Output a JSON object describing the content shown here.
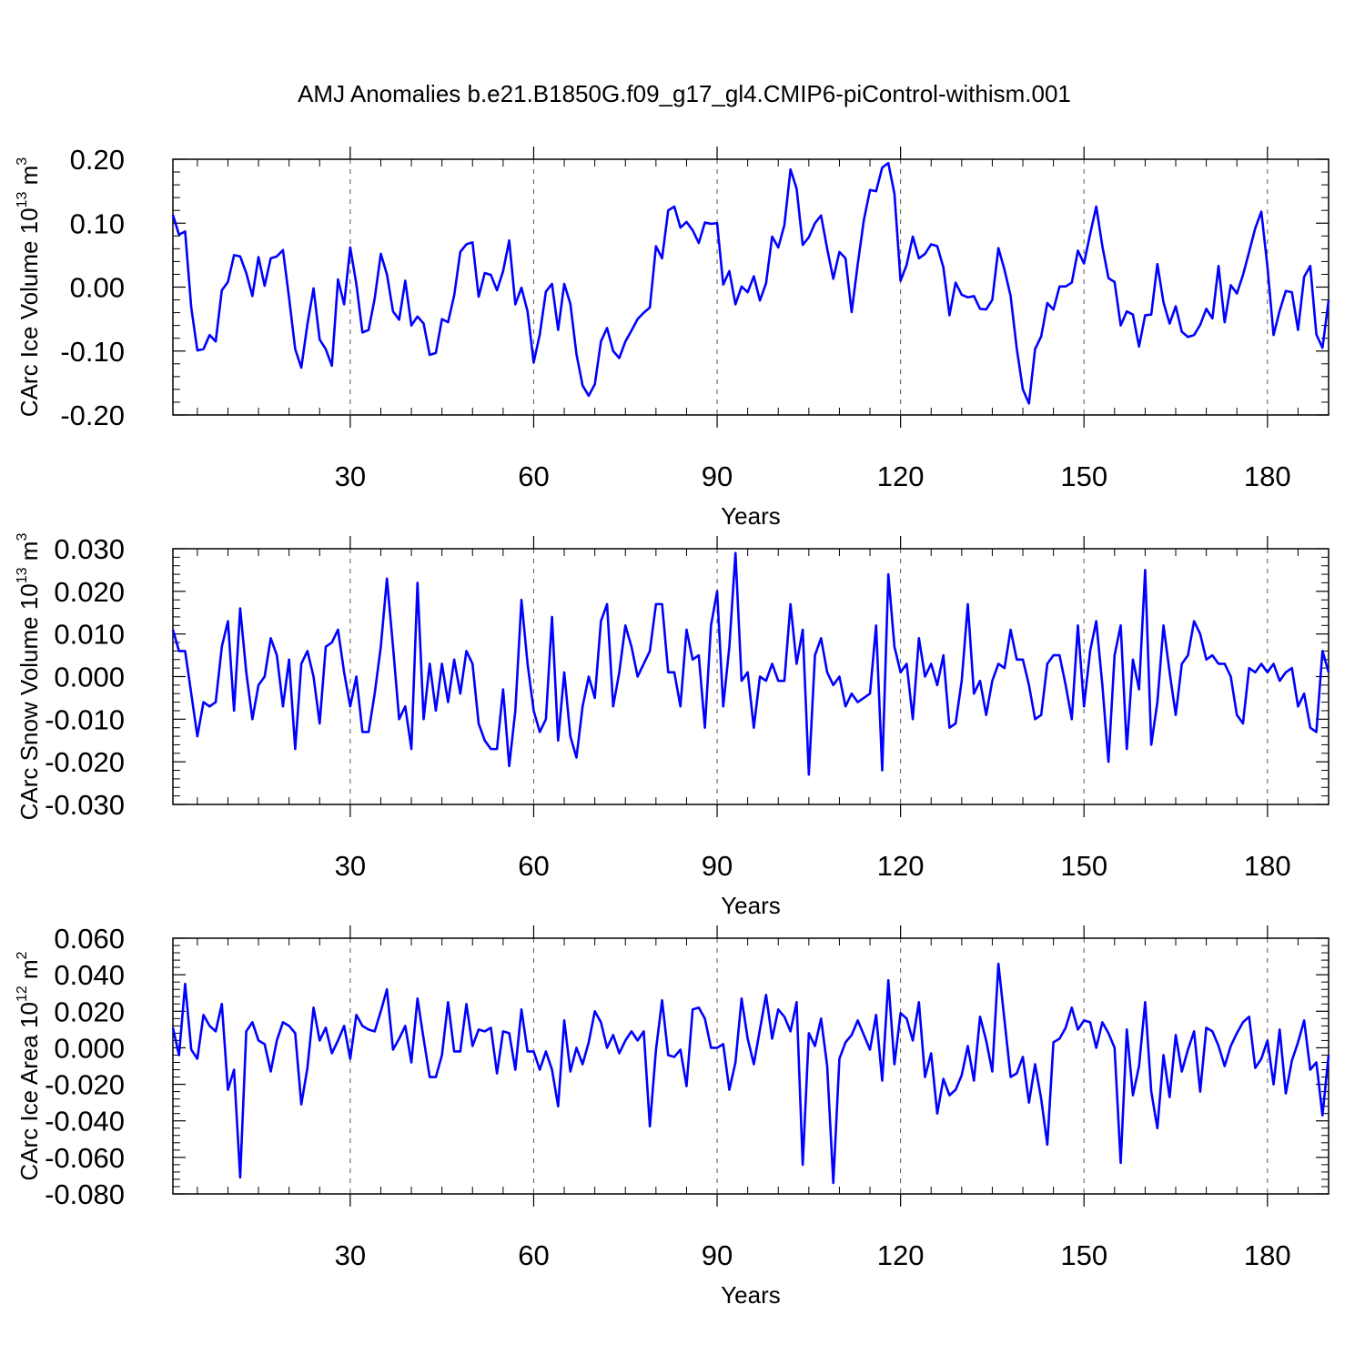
{
  "title": "AMJ Anomalies b.e21.B1850G.f09_g17_gl4.CMIP6-piControl-withism.001",
  "chart_data": [
    {
      "type": "line",
      "ylabel": {
        "text": "CArc Ice Volume 10",
        "exp": "13",
        "unit": " m",
        "unit_exp": "3"
      },
      "xlabel": "Years",
      "xlim": [
        1,
        190
      ],
      "ylim": [
        -0.2,
        0.2
      ],
      "xticks": [
        30,
        60,
        90,
        120,
        150,
        180
      ],
      "xtick_labels": [
        "30",
        "60",
        "90",
        "120",
        "150",
        "180"
      ],
      "yticks": [
        -0.2,
        -0.1,
        0.0,
        0.1,
        0.2
      ],
      "ytick_labels": [
        "-0.20",
        "-0.10",
        "0.00",
        "0.10",
        "0.20"
      ],
      "grid": "vertical dashed at major x ticks",
      "series": [
        {
          "color": "#0000ff",
          "values": [
            0.113,
            0.082,
            0.087,
            -0.032,
            -0.099,
            -0.097,
            -0.075,
            -0.085,
            -0.005,
            0.008,
            0.05,
            0.048,
            0.022,
            -0.014,
            0.047,
            0.002,
            0.045,
            0.048,
            0.058,
            -0.017,
            -0.097,
            -0.126,
            -0.058,
            -0.002,
            -0.082,
            -0.097,
            -0.123,
            0.012,
            -0.027,
            0.062,
            0.005,
            -0.071,
            -0.067,
            -0.018,
            0.052,
            0.02,
            -0.038,
            -0.051,
            0.01,
            -0.06,
            -0.046,
            -0.057,
            -0.106,
            -0.103,
            -0.05,
            -0.055,
            -0.013,
            0.055,
            0.067,
            0.07,
            -0.015,
            0.022,
            0.019,
            -0.005,
            0.025,
            0.073,
            -0.027,
            -0.001,
            -0.038,
            -0.118,
            -0.074,
            -0.007,
            0.005,
            -0.067,
            0.005,
            -0.026,
            -0.105,
            -0.154,
            -0.17,
            -0.152,
            -0.085,
            -0.064,
            -0.1,
            -0.111,
            -0.085,
            -0.068,
            -0.05,
            -0.04,
            -0.032,
            0.064,
            0.045,
            0.12,
            0.126,
            0.093,
            0.102,
            0.089,
            0.069,
            0.101,
            0.099,
            0.1,
            0.004,
            0.025,
            -0.027,
            0.001,
            -0.008,
            0.017,
            -0.021,
            0.006,
            0.079,
            0.062,
            0.097,
            0.184,
            0.154,
            0.066,
            0.078,
            0.1,
            0.112,
            0.06,
            0.013,
            0.055,
            0.045,
            -0.039,
            0.036,
            0.105,
            0.152,
            0.15,
            0.187,
            0.194,
            0.146,
            0.01,
            0.035,
            0.079,
            0.045,
            0.052,
            0.067,
            0.064,
            0.031,
            -0.044,
            0.007,
            -0.012,
            -0.016,
            -0.014,
            -0.034,
            -0.035,
            -0.02,
            0.061,
            0.027,
            -0.014,
            -0.096,
            -0.16,
            -0.182,
            -0.097,
            -0.077,
            -0.025,
            -0.035,
            0.001,
            0.001,
            0.007,
            0.057,
            0.037,
            0.083,
            0.126,
            0.064,
            0.014,
            0.008,
            -0.06,
            -0.038,
            -0.043,
            -0.093,
            -0.044,
            -0.043,
            0.036,
            -0.024,
            -0.057,
            -0.03,
            -0.07,
            -0.078,
            -0.075,
            -0.059,
            -0.034,
            -0.049,
            0.033,
            -0.055,
            0.003,
            -0.01,
            0.019,
            0.055,
            0.092,
            0.118,
            0.032,
            -0.075,
            -0.037,
            -0.006,
            -0.008,
            -0.067,
            0.016,
            0.033,
            -0.074,
            -0.095,
            -0.021
          ]
        }
      ]
    },
    {
      "type": "line",
      "ylabel": {
        "text": "CArc Snow Volume 10",
        "exp": "13",
        "unit": " m",
        "unit_exp": "3"
      },
      "xlabel": "Years",
      "xlim": [
        1,
        190
      ],
      "ylim": [
        -0.03,
        0.03
      ],
      "xticks": [
        30,
        60,
        90,
        120,
        150,
        180
      ],
      "xtick_labels": [
        "30",
        "60",
        "90",
        "120",
        "150",
        "180"
      ],
      "yticks": [
        -0.03,
        -0.02,
        -0.01,
        0.0,
        0.01,
        0.02,
        0.03
      ],
      "ytick_labels": [
        "-0.030",
        "-0.020",
        "-0.010",
        "0.000",
        "0.010",
        "0.020",
        "0.030"
      ],
      "grid": "vertical dashed at major x ticks",
      "series": [
        {
          "color": "#0000ff",
          "values": [
            0.011,
            0.006,
            0.006,
            -0.004,
            -0.014,
            -0.006,
            -0.007,
            -0.006,
            0.007,
            0.013,
            -0.008,
            0.016,
            0.001,
            -0.01,
            -0.002,
            0.0,
            0.009,
            0.005,
            -0.007,
            0.004,
            -0.017,
            0.003,
            0.006,
            0.0,
            -0.011,
            0.007,
            0.008,
            0.011,
            0.001,
            -0.007,
            0.0,
            -0.013,
            -0.013,
            -0.004,
            0.007,
            0.023,
            0.007,
            -0.01,
            -0.007,
            -0.017,
            0.022,
            -0.01,
            0.003,
            -0.008,
            0.003,
            -0.006,
            0.004,
            -0.004,
            0.006,
            0.003,
            -0.011,
            -0.015,
            -0.017,
            -0.017,
            -0.003,
            -0.021,
            -0.008,
            0.018,
            0.003,
            -0.008,
            -0.013,
            -0.01,
            0.014,
            -0.015,
            0.001,
            -0.014,
            -0.019,
            -0.007,
            0.0,
            -0.005,
            0.013,
            0.017,
            -0.007,
            0.001,
            0.012,
            0.007,
            0.0,
            0.003,
            0.006,
            0.017,
            0.017,
            0.001,
            0.001,
            -0.007,
            0.011,
            0.004,
            0.005,
            -0.012,
            0.012,
            0.02,
            -0.007,
            0.007,
            0.029,
            -0.001,
            0.001,
            -0.012,
            0.0,
            -0.001,
            0.003,
            -0.001,
            -0.001,
            0.017,
            0.003,
            0.011,
            -0.023,
            0.005,
            0.009,
            0.001,
            -0.002,
            0.0,
            -0.007,
            -0.004,
            -0.006,
            -0.005,
            -0.004,
            0.012,
            -0.022,
            0.024,
            0.007,
            0.001,
            0.003,
            -0.01,
            0.009,
            0.0,
            0.003,
            -0.002,
            0.005,
            -0.012,
            -0.011,
            -0.001,
            0.017,
            -0.004,
            -0.001,
            -0.009,
            -0.001,
            0.003,
            0.002,
            0.011,
            0.004,
            0.004,
            -0.002,
            -0.01,
            -0.009,
            0.003,
            0.005,
            0.005,
            -0.002,
            -0.01,
            0.012,
            -0.007,
            0.006,
            0.013,
            -0.002,
            -0.02,
            0.005,
            0.012,
            -0.017,
            0.004,
            -0.003,
            0.025,
            -0.016,
            -0.006,
            0.012,
            0.001,
            -0.009,
            0.003,
            0.005,
            0.013,
            0.01,
            0.004,
            0.005,
            0.003,
            0.003,
            0.0,
            -0.009,
            -0.011,
            0.002,
            0.001,
            0.003,
            0.001,
            0.003,
            -0.001,
            0.001,
            0.002,
            -0.007,
            -0.004,
            -0.012,
            -0.013,
            0.006,
            0.001
          ]
        }
      ]
    },
    {
      "type": "line",
      "ylabel": {
        "text": "CArc Ice Area 10",
        "exp": "12",
        "unit": " m",
        "unit_exp": "2"
      },
      "xlabel": "Years",
      "xlim": [
        1,
        190
      ],
      "ylim": [
        -0.08,
        0.06
      ],
      "xticks": [
        30,
        60,
        90,
        120,
        150,
        180
      ],
      "xtick_labels": [
        "30",
        "60",
        "90",
        "120",
        "150",
        "180"
      ],
      "yticks": [
        -0.08,
        -0.06,
        -0.04,
        -0.02,
        0.0,
        0.02,
        0.04,
        0.06
      ],
      "ytick_labels": [
        "-0.080",
        "-0.060",
        "-0.040",
        "-0.020",
        "0.000",
        "0.020",
        "0.040",
        "0.060"
      ],
      "grid": "vertical dashed at major x ticks",
      "series": [
        {
          "color": "#0000ff",
          "values": [
            0.011,
            -0.004,
            0.035,
            -0.001,
            -0.006,
            0.018,
            0.012,
            0.009,
            0.024,
            -0.023,
            -0.012,
            -0.071,
            0.009,
            0.014,
            0.004,
            0.002,
            -0.013,
            0.004,
            0.014,
            0.012,
            0.008,
            -0.031,
            -0.011,
            0.022,
            0.004,
            0.011,
            -0.003,
            0.004,
            0.012,
            -0.006,
            0.018,
            0.012,
            0.01,
            0.009,
            0.02,
            0.032,
            -0.001,
            0.005,
            0.012,
            -0.008,
            0.027,
            0.005,
            -0.016,
            -0.016,
            -0.004,
            0.025,
            -0.002,
            -0.002,
            0.024,
            0.001,
            0.01,
            0.009,
            0.011,
            -0.014,
            0.009,
            0.008,
            -0.012,
            0.021,
            -0.002,
            -0.002,
            -0.012,
            -0.002,
            -0.012,
            -0.032,
            0.015,
            -0.013,
            0.0,
            -0.009,
            0.003,
            0.02,
            0.014,
            0.0,
            0.007,
            -0.003,
            0.004,
            0.009,
            0.004,
            0.009,
            -0.043,
            -0.001,
            0.026,
            -0.004,
            -0.005,
            -0.001,
            -0.021,
            0.021,
            0.022,
            0.016,
            0.0,
            0.0,
            0.002,
            -0.023,
            -0.008,
            0.027,
            0.005,
            -0.009,
            0.01,
            0.029,
            0.005,
            0.021,
            0.017,
            0.009,
            0.025,
            -0.064,
            0.008,
            0.001,
            0.016,
            -0.01,
            -0.074,
            -0.006,
            0.003,
            0.007,
            0.015,
            0.007,
            -0.001,
            0.018,
            -0.018,
            0.037,
            -0.009,
            0.019,
            0.016,
            0.004,
            0.025,
            -0.016,
            -0.003,
            -0.036,
            -0.017,
            -0.026,
            -0.023,
            -0.015,
            0.001,
            -0.018,
            0.017,
            0.004,
            -0.013,
            0.046,
            0.015,
            -0.016,
            -0.014,
            -0.005,
            -0.03,
            -0.009,
            -0.028,
            -0.053,
            0.003,
            0.005,
            0.011,
            0.022,
            0.01,
            0.015,
            0.014,
            0.0,
            0.014,
            0.008,
            0.0,
            -0.063,
            0.01,
            -0.026,
            -0.01,
            0.025,
            -0.024,
            -0.044,
            -0.004,
            -0.027,
            0.007,
            -0.013,
            -0.001,
            0.009,
            -0.024,
            0.011,
            0.009,
            0.001,
            -0.01,
            0.001,
            0.008,
            0.014,
            0.017,
            -0.011,
            -0.006,
            0.004,
            -0.02,
            0.01,
            -0.025,
            -0.007,
            0.003,
            0.015,
            -0.012,
            -0.008,
            -0.037,
            -0.004
          ]
        }
      ]
    }
  ]
}
